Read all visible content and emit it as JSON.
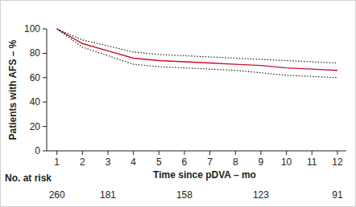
{
  "chart_data": {
    "type": "line",
    "x_label": "Time since pDVA – mo",
    "y_label": "Patients with AFS – %",
    "x": [
      1,
      2,
      3,
      4,
      5,
      6,
      7,
      8,
      9,
      10,
      11,
      12
    ],
    "series": [
      {
        "color": "#c8102e",
        "line_style": "solid",
        "values": [
          100,
          88,
          82,
          76,
          74,
          73,
          72,
          71,
          70,
          68,
          67,
          66
        ]
      },
      {
        "color": "#231f20",
        "line_style": "dotted",
        "values": [
          100,
          91,
          86,
          81,
          79,
          78,
          77,
          76,
          75,
          74,
          73,
          72
        ]
      },
      {
        "color": "#231f20",
        "line_style": "dotted",
        "values": [
          100,
          85,
          78,
          71,
          69,
          68,
          67,
          66,
          64,
          62,
          61,
          60
        ]
      }
    ],
    "xlim": [
      0.6,
      12.35
    ],
    "xticks": [
      1,
      2,
      3,
      4,
      5,
      6,
      7,
      8,
      9,
      10,
      11,
      12
    ],
    "ylim": [
      0,
      100
    ],
    "yticks": [
      0,
      20,
      40,
      60,
      80,
      100
    ],
    "grid": false,
    "at_risk": {
      "label": "No. at risk",
      "x": [
        1,
        3,
        6,
        9,
        12
      ],
      "values": [
        260,
        181,
        158,
        123,
        91
      ]
    }
  }
}
